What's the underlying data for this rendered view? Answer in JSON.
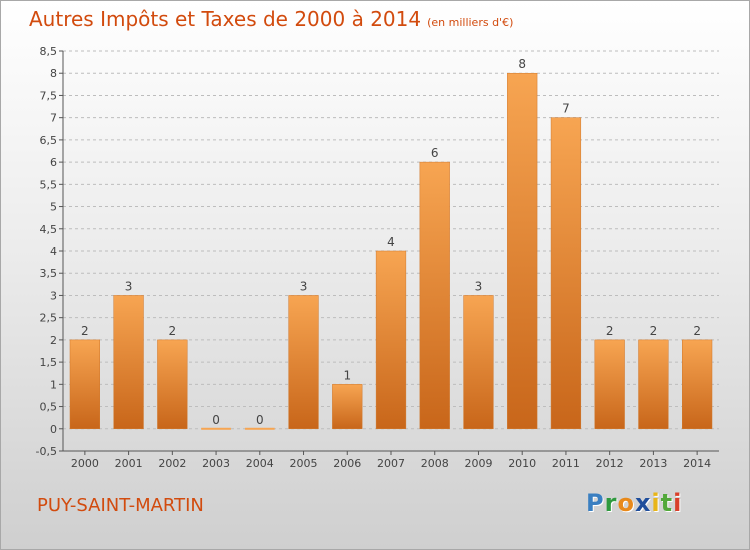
{
  "header": {
    "title": "Autres Impôts et Taxes de 2000 à 2014",
    "unit": "(en milliers d'€)"
  },
  "footer": {
    "place": "PUY-SAINT-MARTIN",
    "brand_letters": [
      {
        "ch": "P",
        "color": "#3a7fc1"
      },
      {
        "ch": "r",
        "color": "#2f9a3f"
      },
      {
        "ch": "o",
        "color": "#e8891a"
      },
      {
        "ch": "x",
        "color": "#1f4e9c"
      },
      {
        "ch": "i",
        "color": "#e8b518"
      },
      {
        "ch": "t",
        "color": "#52a83a"
      },
      {
        "ch": "i",
        "color": "#d93f2a"
      }
    ]
  },
  "colors": {
    "title": "#d24b0e",
    "bar_light": "#f7a552",
    "bar_dark": "#c8661a",
    "grid": "#bdbdbd",
    "axis": "#555555"
  },
  "chart_data": {
    "type": "bar",
    "categories": [
      "2000",
      "2001",
      "2002",
      "2003",
      "2004",
      "2005",
      "2006",
      "2007",
      "2008",
      "2009",
      "2010",
      "2011",
      "2012",
      "2013",
      "2014"
    ],
    "values": [
      2,
      3,
      2,
      0,
      0,
      3,
      1,
      4,
      6,
      3,
      8,
      7,
      2,
      2,
      2
    ],
    "ylim": [
      -0.5,
      8.5
    ],
    "yticks": [
      "-0,5",
      "0",
      "0,5",
      "1",
      "1,5",
      "2",
      "2,5",
      "3",
      "3,5",
      "4",
      "4,5",
      "5",
      "5,5",
      "6",
      "6,5",
      "7",
      "7,5",
      "8",
      "8,5"
    ],
    "grid": true
  }
}
